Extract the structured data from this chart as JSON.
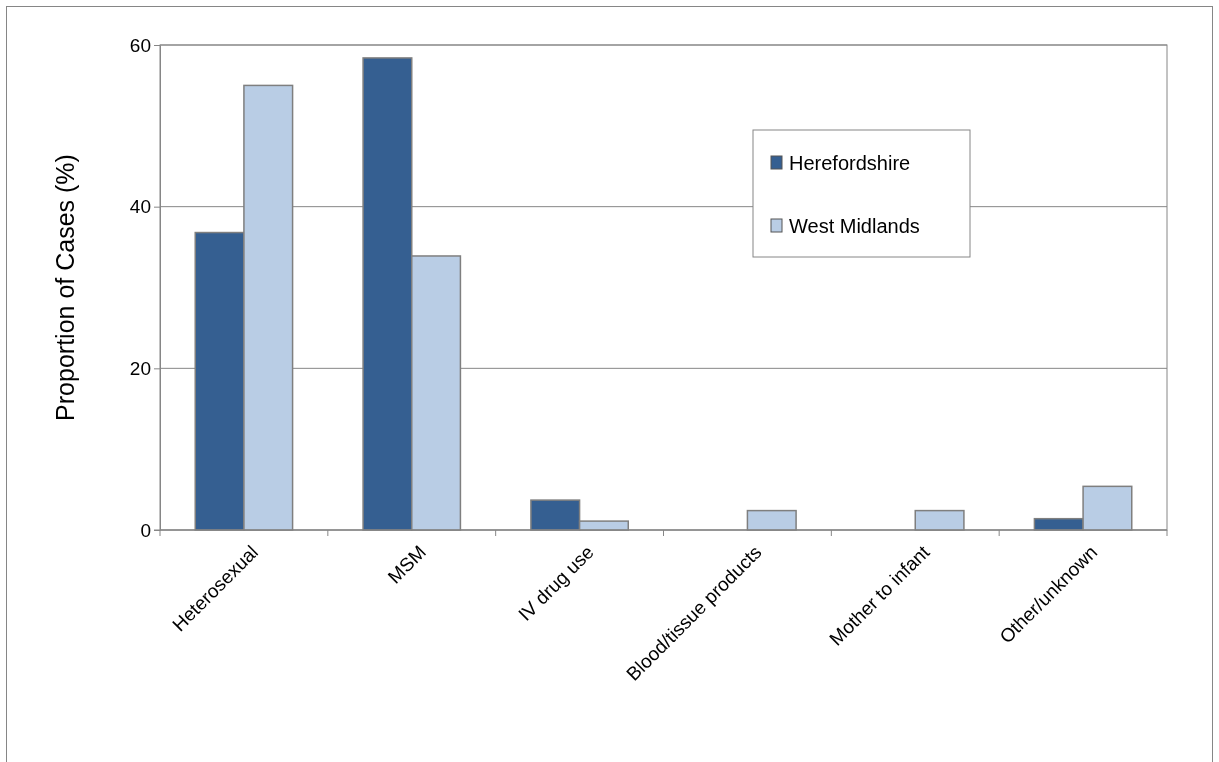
{
  "chart_data": {
    "type": "bar",
    "ylabel": "Proportion of Cases (%)",
    "categories": [
      "Heterosexual",
      "MSM",
      "IV drug use",
      "Blood/tissue products",
      "Mother to infant",
      "Other/unknown"
    ],
    "series": [
      {
        "name": "Herefordshire",
        "color": "#355f91",
        "values": [
          36.8,
          58.4,
          3.7,
          0,
          0,
          1.4
        ]
      },
      {
        "name": "West Midlands",
        "color": "#b9cde5",
        "values": [
          55.0,
          33.9,
          1.1,
          2.4,
          2.4,
          5.4
        ]
      }
    ],
    "ylim": [
      0,
      60
    ],
    "yticks": [
      0,
      20,
      40,
      60
    ],
    "grid": "y",
    "legend": "top right"
  }
}
